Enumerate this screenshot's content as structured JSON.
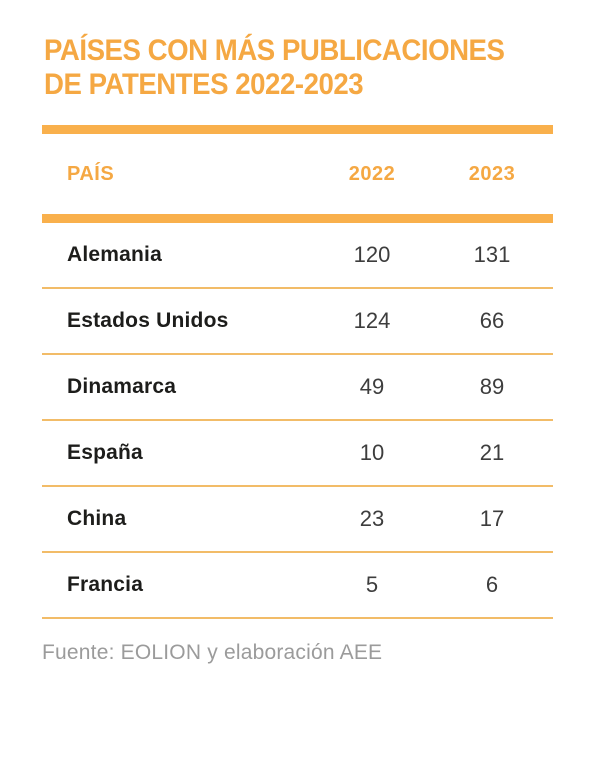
{
  "title": {
    "line1": "PAÍSES CON MÁS PUBLICACIONES",
    "line2": "DE PATENTES 2022-2023"
  },
  "table": {
    "headers": {
      "country": "PAÍS",
      "col2022": "2022",
      "col2023": "2023"
    },
    "rows": [
      {
        "country": "Alemania",
        "y2022": "120",
        "y2023": "131"
      },
      {
        "country": "Estados Unidos",
        "y2022": "124",
        "y2023": "66"
      },
      {
        "country": "Dinamarca",
        "y2022": "49",
        "y2023": "89"
      },
      {
        "country": "España",
        "y2022": "10",
        "y2023": "21"
      },
      {
        "country": "China",
        "y2022": "23",
        "y2023": "17"
      },
      {
        "country": "Francia",
        "y2022": "5",
        "y2023": "6"
      }
    ]
  },
  "source": "Fuente: EOLION y elaboración AEE",
  "colors": {
    "accent_text": "#F5A843",
    "thick_rule": "#F9B04C",
    "row_separator": "#F2BC68",
    "country_text": "#1D1D1B",
    "value_text": "#3D3D3D",
    "source_text": "#9B9B9B",
    "background": "#FFFFFF"
  },
  "chart_data": {
    "type": "table",
    "title": "PAÍSES CON MÁS PUBLICACIONES DE PATENTES 2022-2023",
    "categories": [
      "Alemania",
      "Estados Unidos",
      "Dinamarca",
      "España",
      "China",
      "Francia"
    ],
    "series": [
      {
        "name": "2022",
        "values": [
          120,
          124,
          49,
          10,
          23,
          5
        ]
      },
      {
        "name": "2023",
        "values": [
          131,
          66,
          89,
          21,
          17,
          6
        ]
      }
    ],
    "source": "Fuente: EOLION y elaboración AEE"
  }
}
